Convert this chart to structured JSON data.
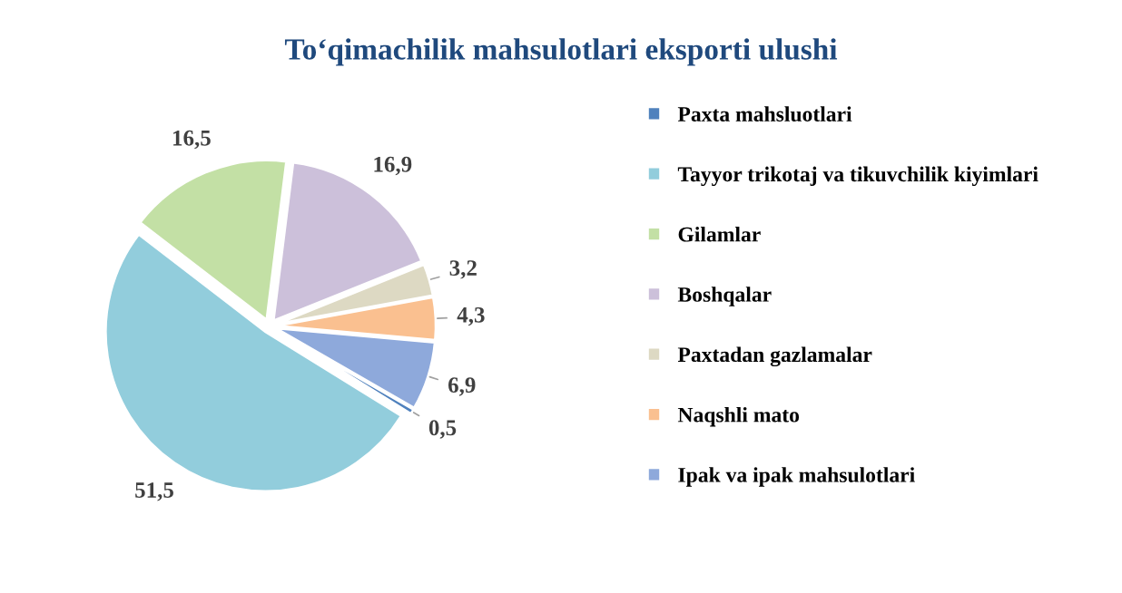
{
  "chart_data": {
    "type": "pie",
    "title": "To‘qimachilik mahsulotlari eksporti ulushi",
    "categories": [
      "Paxta mahsluotlari",
      "Tayyor trikotaj va tikuvchilik kiyimlari",
      "Gilamlar",
      "Boshqalar",
      "Paxtadan gazlamalar",
      "Naqshli mato",
      "Ipak va ipak mahsulotlari"
    ],
    "values": [
      0.5,
      51.5,
      16.5,
      16.9,
      3.2,
      4.3,
      6.9
    ],
    "value_labels": [
      "0,5",
      "51,5",
      "16,5",
      "16,9",
      "3,2",
      "4,3",
      "6,9"
    ],
    "colors": [
      "#4f81bd",
      "#92cddc",
      "#c3e0a5",
      "#ccc0da",
      "#ddd9c3",
      "#fac090",
      "#8ea9db"
    ],
    "legend": "right"
  }
}
